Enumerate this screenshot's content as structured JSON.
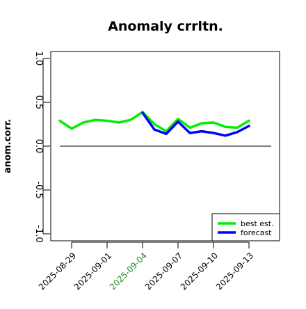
{
  "chart_data": {
    "type": "line",
    "title": "Anomaly crrltn.",
    "xlabel": "",
    "ylabel": "anom.corr.",
    "ylim": [
      -1.1,
      1.1
    ],
    "yticks": [
      -1.0,
      -0.5,
      0.0,
      0.5,
      1.0
    ],
    "ytick_labels": [
      "-1.0",
      "-0.5",
      "0.0",
      "0.5",
      "1.0"
    ],
    "x": [
      "2025-08-28",
      "2025-08-29",
      "2025-08-30",
      "2025-08-31",
      "2025-09-01",
      "2025-09-02",
      "2025-09-03",
      "2025-09-04",
      "2025-09-05",
      "2025-09-06",
      "2025-09-07",
      "2025-09-08",
      "2025-09-09",
      "2025-09-10",
      "2025-09-11",
      "2025-09-12",
      "2025-09-13"
    ],
    "xticks": [
      "2025-08-29",
      "2025-09-01",
      "2025-09-04",
      "2025-09-07",
      "2025-09-10",
      "2025-09-13"
    ],
    "highlight_tick": "2025-09-04",
    "highlight_color": "#228b22",
    "reference_line": 0.0,
    "grid": false,
    "legend_position": "bottom-right",
    "series": [
      {
        "name": "best est.",
        "color": "#00ee00",
        "values": [
          0.29,
          0.2,
          0.27,
          0.3,
          0.29,
          0.27,
          0.3,
          0.39,
          0.25,
          0.17,
          0.31,
          0.21,
          0.26,
          0.27,
          0.22,
          0.21,
          0.29
        ]
      },
      {
        "name": "forecast",
        "color": "#0000ff",
        "values": [
          null,
          null,
          null,
          null,
          null,
          null,
          null,
          0.38,
          0.19,
          0.14,
          0.28,
          0.15,
          0.17,
          0.15,
          0.12,
          0.16,
          0.23
        ]
      }
    ]
  }
}
